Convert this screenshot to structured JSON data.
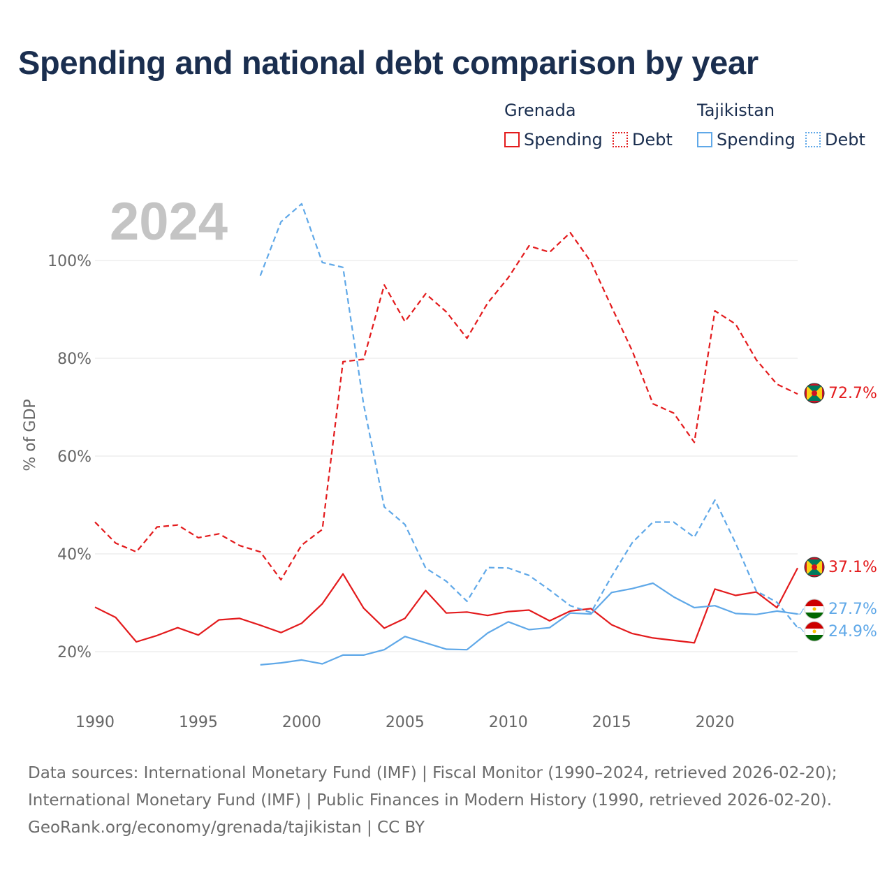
{
  "title": "Spending and national debt comparison by year",
  "legend": {
    "groups": [
      {
        "country": "Grenada",
        "color": "#e31a1c",
        "items": [
          {
            "label": "Spending",
            "style": "solid"
          },
          {
            "label": "Debt",
            "style": "dotted"
          }
        ]
      },
      {
        "country": "Tajikistan",
        "color": "#5fa8e8",
        "items": [
          {
            "label": "Spending",
            "style": "solid"
          },
          {
            "label": "Debt",
            "style": "dotted"
          }
        ]
      }
    ]
  },
  "sources": {
    "line1": "Data sources: International Monetary Fund (IMF) | Fiscal Monitor (1990–2024, retrieved 2026-02-20);",
    "line2": "International Monetary Fund (IMF) | Public Finances in Modern History (1990, retrieved 2026-02-20).",
    "line3": "GeoRank.org/economy/grenada/tajikistan | CC BY"
  },
  "chart_data": {
    "type": "line",
    "year_label": "2024",
    "ylabel": "% of GDP",
    "xlabel": "",
    "xlim": [
      1990,
      2024
    ],
    "ylim": [
      10,
      115
    ],
    "yticks": [
      20,
      40,
      60,
      80,
      100
    ],
    "ytick_labels": [
      "20%",
      "40%",
      "60%",
      "80%",
      "100%"
    ],
    "xticks": [
      1990,
      1995,
      2000,
      2005,
      2010,
      2015,
      2020
    ],
    "xtick_labels": [
      "1990",
      "1995",
      "2000",
      "2005",
      "2010",
      "2015",
      "2020"
    ],
    "series": [
      {
        "name": "Grenada Debt",
        "color": "#e31a1c",
        "dash": true,
        "end_label": "72.7%",
        "x": [
          1990,
          1991,
          1992,
          1993,
          1994,
          1995,
          1996,
          1997,
          1998,
          1999,
          2000,
          2001,
          2002,
          2003,
          2004,
          2005,
          2006,
          2007,
          2008,
          2009,
          2010,
          2011,
          2012,
          2013,
          2014,
          2015,
          2016,
          2017,
          2018,
          2019,
          2020,
          2021,
          2022,
          2023,
          2024
        ],
        "values": [
          46.5,
          42.2,
          40.4,
          45.5,
          45.9,
          43.3,
          44.1,
          41.7,
          40.4,
          34.7,
          41.8,
          45.0,
          79.3,
          79.8,
          95.0,
          87.5,
          93.2,
          89.5,
          84.1,
          91.3,
          96.5,
          103.0,
          101.7,
          105.7,
          99.7,
          90.5,
          81.5,
          70.7,
          68.8,
          62.8,
          89.7,
          87.0,
          79.7,
          74.7,
          72.7
        ]
      },
      {
        "name": "Grenada Spending",
        "color": "#e31a1c",
        "dash": false,
        "end_label": "37.1%",
        "x": [
          1990,
          1991,
          1992,
          1993,
          1994,
          1995,
          1996,
          1997,
          1998,
          1999,
          2000,
          2001,
          2002,
          2003,
          2004,
          2005,
          2006,
          2007,
          2008,
          2009,
          2010,
          2011,
          2012,
          2013,
          2014,
          2015,
          2016,
          2017,
          2018,
          2019,
          2020,
          2021,
          2022,
          2023,
          2024
        ],
        "values": [
          29.1,
          27.0,
          22.0,
          23.3,
          24.9,
          23.4,
          26.5,
          26.8,
          25.4,
          23.9,
          25.8,
          29.8,
          35.9,
          28.9,
          24.8,
          26.8,
          32.5,
          27.9,
          28.1,
          27.4,
          28.2,
          28.5,
          26.3,
          28.3,
          28.8,
          25.5,
          23.7,
          22.8,
          22.3,
          21.8,
          32.8,
          31.5,
          32.2,
          29.0,
          37.1
        ]
      },
      {
        "name": "Tajikistan Debt",
        "color": "#5fa8e8",
        "dash": true,
        "end_label": "24.9%",
        "x": [
          1998,
          1999,
          2000,
          2001,
          2002,
          2003,
          2004,
          2005,
          2006,
          2007,
          2008,
          2009,
          2010,
          2011,
          2012,
          2013,
          2014,
          2015,
          2016,
          2017,
          2018,
          2019,
          2020,
          2021,
          2022,
          2023,
          2024
        ],
        "values": [
          96.9,
          107.9,
          111.6,
          99.6,
          98.6,
          70.6,
          49.6,
          46.0,
          37.1,
          34.4,
          30.3,
          37.2,
          37.1,
          35.6,
          32.6,
          29.4,
          28.0,
          35.4,
          42.3,
          46.5,
          46.5,
          43.4,
          51.0,
          42.2,
          32.4,
          30.1,
          24.9
        ]
      },
      {
        "name": "Tajikistan Spending",
        "color": "#5fa8e8",
        "dash": false,
        "end_label": "27.7%",
        "x": [
          1998,
          1999,
          2000,
          2001,
          2002,
          2003,
          2004,
          2005,
          2006,
          2007,
          2008,
          2009,
          2010,
          2011,
          2012,
          2013,
          2014,
          2015,
          2016,
          2017,
          2018,
          2019,
          2020,
          2021,
          2022,
          2023,
          2024
        ],
        "values": [
          17.3,
          17.7,
          18.3,
          17.5,
          19.3,
          19.3,
          20.4,
          23.1,
          21.8,
          20.5,
          20.4,
          23.8,
          26.1,
          24.5,
          24.9,
          27.9,
          27.7,
          32.1,
          32.9,
          34.0,
          31.2,
          29.0,
          29.4,
          27.8,
          27.6,
          28.3,
          27.7
        ]
      }
    ]
  }
}
